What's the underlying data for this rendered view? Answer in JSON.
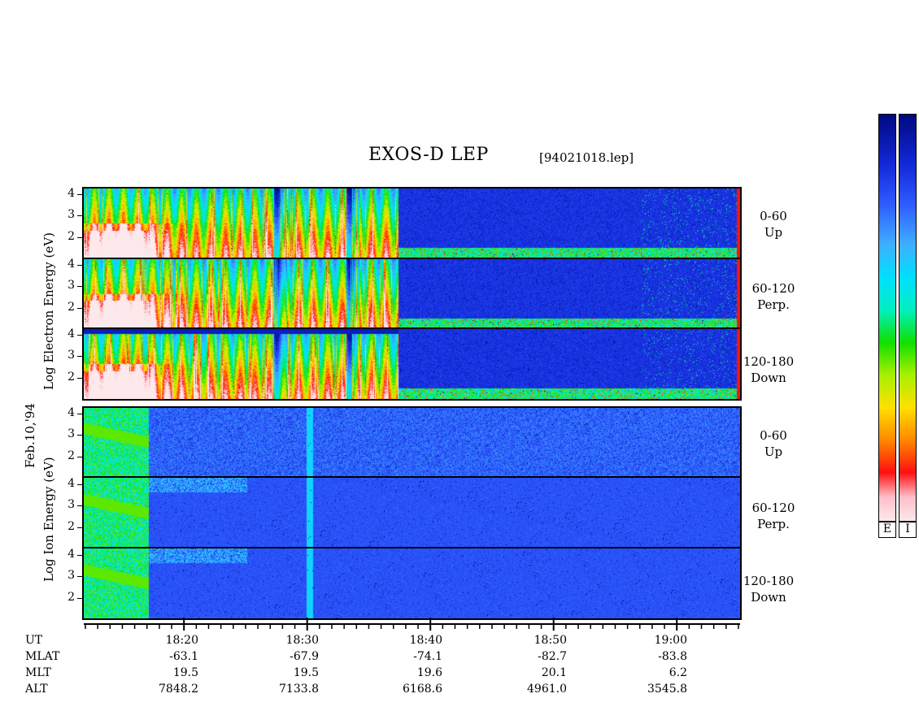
{
  "title": "EXOS-D LEP",
  "file_name": "[94021018.lep]",
  "colors": {
    "bg": "#0a1fa8",
    "scale": [
      "#fde9ec",
      "#ff1010",
      "#ff8800",
      "#ffe000",
      "#a8f000",
      "#10e000",
      "#00f0c0",
      "#00e0ff",
      "#3fb0ff",
      "#2f5cff",
      "#1228d8",
      "#000a80"
    ]
  },
  "electron": {
    "ylabel": "Log Electron Energy (eV)",
    "bands": [
      {
        "range": "0-60",
        "dir": "Up"
      },
      {
        "range": "60-120",
        "dir": "Perp."
      },
      {
        "range": "120-180",
        "dir": "Down"
      }
    ],
    "yticks": [
      "4",
      "3",
      "2"
    ]
  },
  "ion": {
    "ylabel": "Log Ion Energy (eV)",
    "bands": [
      {
        "range": "0-60",
        "dir": "Up"
      },
      {
        "range": "60-120",
        "dir": "Perp."
      },
      {
        "range": "120-180",
        "dir": "Down"
      }
    ],
    "yticks": [
      "4",
      "3",
      "2"
    ]
  },
  "date_label": "Feb.10,'94",
  "colorbar_labels": [
    "E",
    "I"
  ],
  "axis": {
    "row_labels": [
      "UT",
      "MLAT",
      "MLT",
      "ALT"
    ],
    "columns": [
      {
        "UT": "18:20",
        "MLAT": "-63.1",
        "MLT": "19.5",
        "ALT": "7848.2"
      },
      {
        "UT": "18:30",
        "MLAT": "-67.9",
        "MLT": "19.5",
        "ALT": "7133.8"
      },
      {
        "UT": "18:40",
        "MLAT": "-74.1",
        "MLT": "19.6",
        "ALT": "6168.6"
      },
      {
        "UT": "18:50",
        "MLAT": "-82.7",
        "MLT": "20.1",
        "ALT": "4961.0"
      },
      {
        "UT": "19:00",
        "MLAT": "-83.8",
        "MLT": "6.2",
        "ALT": "3545.8"
      }
    ]
  },
  "chart_data": {
    "type": "heatmap",
    "title": "EXOS-D LEP",
    "x_axis": {
      "label": "UT",
      "tick_labels": [
        "18:20",
        "18:30",
        "18:40",
        "18:50",
        "19:00"
      ],
      "range": [
        "18:12",
        "19:06"
      ]
    },
    "y_range": [
      1,
      4.3
    ],
    "panels": [
      {
        "species": "Electron",
        "pitch_angle": "0-60",
        "direction": "Up",
        "yticks": [
          4,
          3,
          2
        ]
      },
      {
        "species": "Electron",
        "pitch_angle": "60-120",
        "direction": "Perp.",
        "yticks": [
          4,
          3,
          2
        ]
      },
      {
        "species": "Electron",
        "pitch_angle": "120-180",
        "direction": "Down",
        "yticks": [
          4,
          3,
          2
        ]
      },
      {
        "species": "Ion",
        "pitch_angle": "0-60",
        "direction": "Up",
        "yticks": [
          4,
          3,
          2
        ]
      },
      {
        "species": "Ion",
        "pitch_angle": "60-120",
        "direction": "Perp.",
        "yticks": [
          4,
          3,
          2
        ]
      },
      {
        "species": "Ion",
        "pitch_angle": "120-180",
        "direction": "Down",
        "yticks": [
          4,
          3,
          2
        ]
      }
    ]
  }
}
